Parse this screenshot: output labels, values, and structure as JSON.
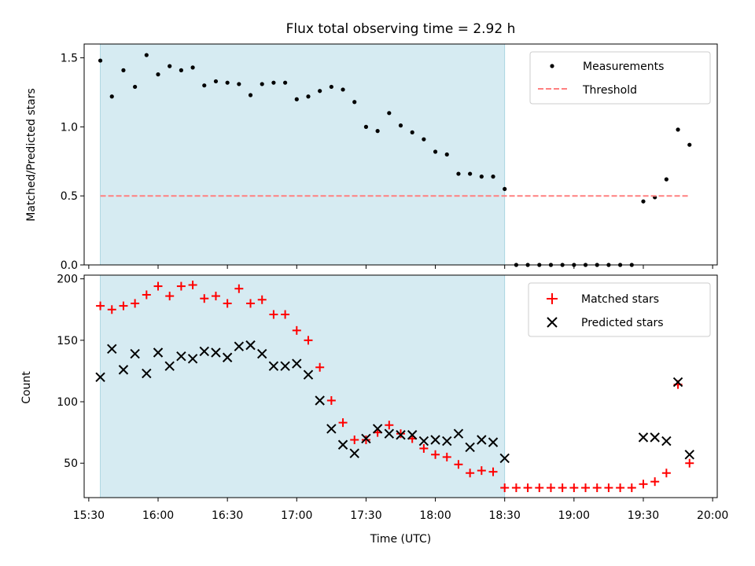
{
  "chart_data": [
    {
      "type": "scatter",
      "title": "Flux total observing time = 2.92 h",
      "xlabel": "",
      "ylabel": "Matched/Predicted stars",
      "ylim": [
        0,
        1.6
      ],
      "yticks": [
        0.0,
        0.5,
        1.0,
        1.5
      ],
      "ytick_labels": [
        "0.0",
        "0.5",
        "1.0",
        "1.5"
      ],
      "xlim": [
        "15:28",
        "20:02"
      ],
      "xticks": [
        "15:30",
        "16:00",
        "16:30",
        "17:00",
        "17:30",
        "18:00",
        "18:30",
        "19:00",
        "19:30",
        "20:00"
      ],
      "grid": false,
      "legend_position": "top-right",
      "shaded_interval": {
        "start": "15:35",
        "end": "18:30",
        "color": "#add8e6"
      },
      "series": [
        {
          "name": "Measurements",
          "marker": "dot",
          "color": "#000000",
          "points": [
            [
              "15:35",
              1.48
            ],
            [
              "15:40",
              1.22
            ],
            [
              "15:45",
              1.41
            ],
            [
              "15:50",
              1.29
            ],
            [
              "15:55",
              1.52
            ],
            [
              "16:00",
              1.38
            ],
            [
              "16:05",
              1.44
            ],
            [
              "16:10",
              1.41
            ],
            [
              "16:15",
              1.43
            ],
            [
              "16:20",
              1.3
            ],
            [
              "16:25",
              1.33
            ],
            [
              "16:30",
              1.32
            ],
            [
              "16:35",
              1.31
            ],
            [
              "16:40",
              1.23
            ],
            [
              "16:45",
              1.31
            ],
            [
              "16:50",
              1.32
            ],
            [
              "16:55",
              1.32
            ],
            [
              "17:00",
              1.2
            ],
            [
              "17:05",
              1.22
            ],
            [
              "17:10",
              1.26
            ],
            [
              "17:15",
              1.29
            ],
            [
              "17:20",
              1.27
            ],
            [
              "17:25",
              1.18
            ],
            [
              "17:30",
              1.0
            ],
            [
              "17:35",
              0.97
            ],
            [
              "17:40",
              1.1
            ],
            [
              "17:45",
              1.01
            ],
            [
              "17:50",
              0.96
            ],
            [
              "17:55",
              0.91
            ],
            [
              "18:00",
              0.82
            ],
            [
              "18:05",
              0.8
            ],
            [
              "18:10",
              0.66
            ],
            [
              "18:15",
              0.66
            ],
            [
              "18:20",
              0.64
            ],
            [
              "18:25",
              0.64
            ],
            [
              "18:30",
              0.55
            ],
            [
              "18:35",
              0.0
            ],
            [
              "18:40",
              0.0
            ],
            [
              "18:45",
              0.0
            ],
            [
              "18:50",
              0.0
            ],
            [
              "18:55",
              0.0
            ],
            [
              "19:00",
              0.0
            ],
            [
              "19:05",
              0.0
            ],
            [
              "19:10",
              0.0
            ],
            [
              "19:15",
              0.0
            ],
            [
              "19:20",
              0.0
            ],
            [
              "19:25",
              0.0
            ],
            [
              "19:30",
              0.46
            ],
            [
              "19:35",
              0.49
            ],
            [
              "19:40",
              0.62
            ],
            [
              "19:45",
              0.98
            ],
            [
              "19:50",
              0.87
            ]
          ]
        },
        {
          "name": "Threshold",
          "marker": "dashed-line",
          "color": "#ff8080",
          "points": [
            [
              "15:35",
              0.5
            ],
            [
              "19:50",
              0.5
            ]
          ]
        }
      ]
    },
    {
      "type": "scatter",
      "title": "",
      "xlabel": "Time (UTC)",
      "ylabel": "Count",
      "ylim": [
        22,
        203
      ],
      "yticks": [
        50,
        100,
        150,
        200
      ],
      "ytick_labels": [
        "50",
        "100",
        "150",
        "200"
      ],
      "xlim": [
        "15:28",
        "20:02"
      ],
      "xticks": [
        "15:30",
        "16:00",
        "16:30",
        "17:00",
        "17:30",
        "18:00",
        "18:30",
        "19:00",
        "19:30",
        "20:00"
      ],
      "xtick_labels": [
        "15:30",
        "16:00",
        "16:30",
        "17:00",
        "17:30",
        "18:00",
        "18:30",
        "19:00",
        "19:30",
        "20:00"
      ],
      "grid": false,
      "legend_position": "top-right",
      "shaded_interval": {
        "start": "15:35",
        "end": "18:30",
        "color": "#add8e6"
      },
      "series": [
        {
          "name": "Matched stars",
          "marker": "plus",
          "color": "#ff0000",
          "points": [
            [
              "15:35",
              178
            ],
            [
              "15:40",
              175
            ],
            [
              "15:45",
              178
            ],
            [
              "15:50",
              180
            ],
            [
              "15:55",
              187
            ],
            [
              "16:00",
              194
            ],
            [
              "16:05",
              186
            ],
            [
              "16:10",
              194
            ],
            [
              "16:15",
              195
            ],
            [
              "16:20",
              184
            ],
            [
              "16:25",
              186
            ],
            [
              "16:30",
              180
            ],
            [
              "16:35",
              192
            ],
            [
              "16:40",
              180
            ],
            [
              "16:45",
              183
            ],
            [
              "16:50",
              171
            ],
            [
              "16:55",
              171
            ],
            [
              "17:00",
              158
            ],
            [
              "17:05",
              150
            ],
            [
              "17:10",
              128
            ],
            [
              "17:15",
              101
            ],
            [
              "17:20",
              83
            ],
            [
              "17:25",
              69
            ],
            [
              "17:30",
              69
            ],
            [
              "17:35",
              75
            ],
            [
              "17:40",
              81
            ],
            [
              "17:45",
              74
            ],
            [
              "17:50",
              70
            ],
            [
              "17:55",
              62
            ],
            [
              "18:00",
              57
            ],
            [
              "18:05",
              55
            ],
            [
              "18:10",
              49
            ],
            [
              "18:15",
              42
            ],
            [
              "18:20",
              44
            ],
            [
              "18:25",
              43
            ],
            [
              "18:30",
              30
            ],
            [
              "18:35",
              30
            ],
            [
              "18:40",
              30
            ],
            [
              "18:45",
              30
            ],
            [
              "18:50",
              30
            ],
            [
              "18:55",
              30
            ],
            [
              "19:00",
              30
            ],
            [
              "19:05",
              30
            ],
            [
              "19:10",
              30
            ],
            [
              "19:15",
              30
            ],
            [
              "19:20",
              30
            ],
            [
              "19:25",
              30
            ],
            [
              "19:30",
              33
            ],
            [
              "19:35",
              35
            ],
            [
              "19:40",
              42
            ],
            [
              "19:45",
              114
            ],
            [
              "19:50",
              50
            ]
          ]
        },
        {
          "name": "Predicted stars",
          "marker": "x",
          "color": "#000000",
          "points": [
            [
              "15:35",
              120
            ],
            [
              "15:40",
              143
            ],
            [
              "15:45",
              126
            ],
            [
              "15:50",
              139
            ],
            [
              "15:55",
              123
            ],
            [
              "16:00",
              140
            ],
            [
              "16:05",
              129
            ],
            [
              "16:10",
              137
            ],
            [
              "16:15",
              135
            ],
            [
              "16:20",
              141
            ],
            [
              "16:25",
              140
            ],
            [
              "16:30",
              136
            ],
            [
              "16:35",
              145
            ],
            [
              "16:40",
              146
            ],
            [
              "16:45",
              139
            ],
            [
              "16:50",
              129
            ],
            [
              "16:55",
              129
            ],
            [
              "17:00",
              131
            ],
            [
              "17:05",
              122
            ],
            [
              "17:10",
              101
            ],
            [
              "17:15",
              78
            ],
            [
              "17:20",
              65
            ],
            [
              "17:25",
              58
            ],
            [
              "17:30",
              70
            ],
            [
              "17:35",
              78
            ],
            [
              "17:40",
              74
            ],
            [
              "17:45",
              73
            ],
            [
              "17:50",
              73
            ],
            [
              "17:55",
              68
            ],
            [
              "18:00",
              69
            ],
            [
              "18:05",
              68
            ],
            [
              "18:10",
              74
            ],
            [
              "18:15",
              63
            ],
            [
              "18:20",
              69
            ],
            [
              "18:25",
              67
            ],
            [
              "18:30",
              54
            ],
            [
              "19:30",
              71
            ],
            [
              "19:35",
              71
            ],
            [
              "19:40",
              68
            ],
            [
              "19:45",
              116
            ],
            [
              "19:50",
              57
            ]
          ]
        }
      ]
    }
  ]
}
